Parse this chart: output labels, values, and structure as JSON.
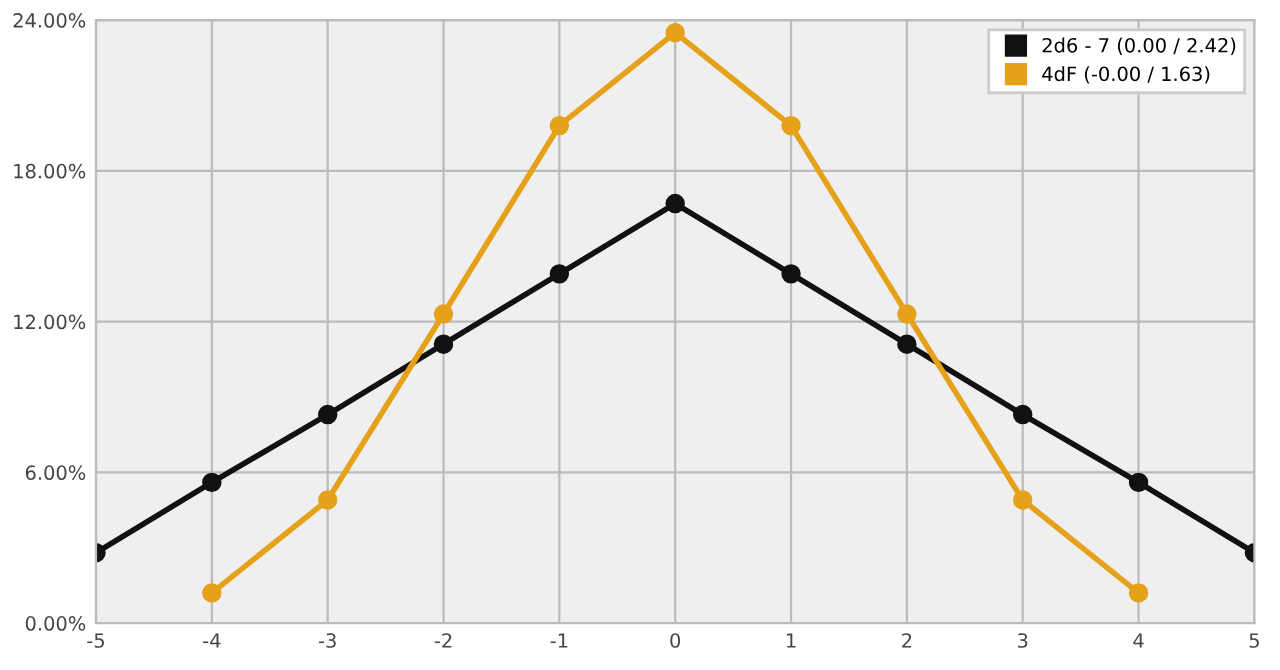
{
  "chart_data": {
    "type": "line",
    "x": [
      -5,
      -4,
      -3,
      -2,
      -1,
      0,
      1,
      2,
      3,
      4,
      5
    ],
    "series": [
      {
        "name": "2d6 - 7 (0.00 / 2.42)",
        "color": "#111111",
        "values": [
          2.8,
          5.6,
          8.3,
          11.1,
          13.9,
          16.7,
          13.9,
          11.1,
          8.3,
          5.6,
          2.8
        ]
      },
      {
        "name": "4dF (-0.00 / 1.63)",
        "color": "#e6a11a",
        "x": [
          -4,
          -3,
          -2,
          -1,
          0,
          1,
          2,
          3,
          4
        ],
        "values": [
          1.2,
          4.9,
          12.3,
          19.8,
          23.5,
          19.8,
          12.3,
          4.9,
          1.2
        ]
      }
    ],
    "xlim": [
      -5,
      5
    ],
    "xticks": [
      -5,
      -4,
      -3,
      -2,
      -1,
      0,
      1,
      2,
      3,
      4,
      5
    ],
    "ylim": [
      0,
      24
    ],
    "yticks": [
      {
        "value": 0,
        "label": "0.00%"
      },
      {
        "value": 6,
        "label": "6.00%"
      },
      {
        "value": 12,
        "label": "12.00%"
      },
      {
        "value": 18,
        "label": "18.00%"
      },
      {
        "value": 24,
        "label": "24.00%"
      }
    ],
    "grid": true,
    "legend": "top right",
    "marker": "circle",
    "line_style": "solid"
  }
}
